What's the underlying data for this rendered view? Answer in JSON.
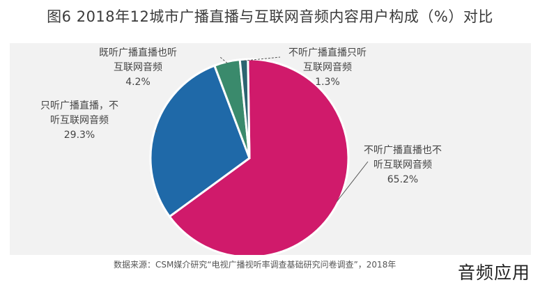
{
  "chart_data": {
    "type": "pie",
    "title": "图6  2018年12城市广播直播与互联网音频内容用户构成（%）对比",
    "slices": [
      {
        "label_line1": "不听广播直播也不",
        "label_line2": "听互联网音频",
        "label": "不听广播直播也不听互联网音频",
        "value": 65.2,
        "value_text": "65.2%",
        "color": "#d01a6b"
      },
      {
        "label_line1": "只听广播直播，不",
        "label_line2": "听互联网音频",
        "label": "只听广播直播，不听互联网音频",
        "value": 29.3,
        "value_text": "29.3%",
        "color": "#1f69a8"
      },
      {
        "label_line1": "既听广播直播也听",
        "label_line2": "互联网音频",
        "label": "既听广播直播也听互联网音频",
        "value": 4.2,
        "value_text": "4.2%",
        "color": "#3a8a6c"
      },
      {
        "label_line1": "不听广播直播只听",
        "label_line2": "互联网音频",
        "label": "不听广播直播只听互联网音频",
        "value": 1.3,
        "value_text": "1.3%",
        "color": "#2c6470"
      }
    ],
    "source": "数据来源：CSM媒介研究“电视广播视听率调查基础研究问卷调查”，2018年"
  },
  "watermark": "音频应用"
}
